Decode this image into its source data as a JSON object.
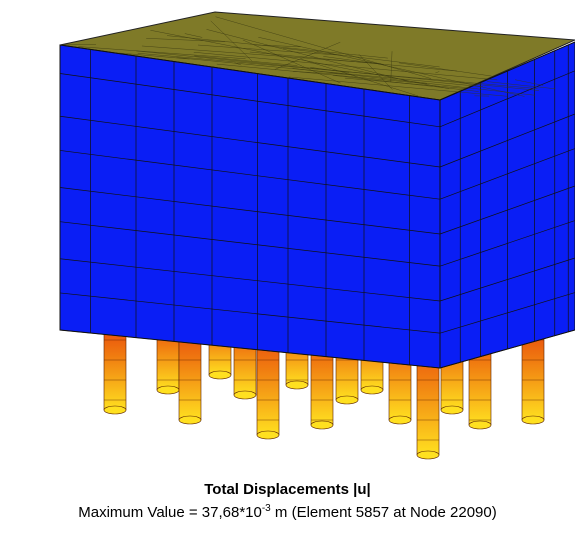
{
  "caption": {
    "title": "Total Displacements |u|",
    "max_prefix": "Maximum Value = 37,68*10",
    "max_exponent": "-3",
    "max_suffix": " m (Element 5857 at Node 22090)"
  }
}
